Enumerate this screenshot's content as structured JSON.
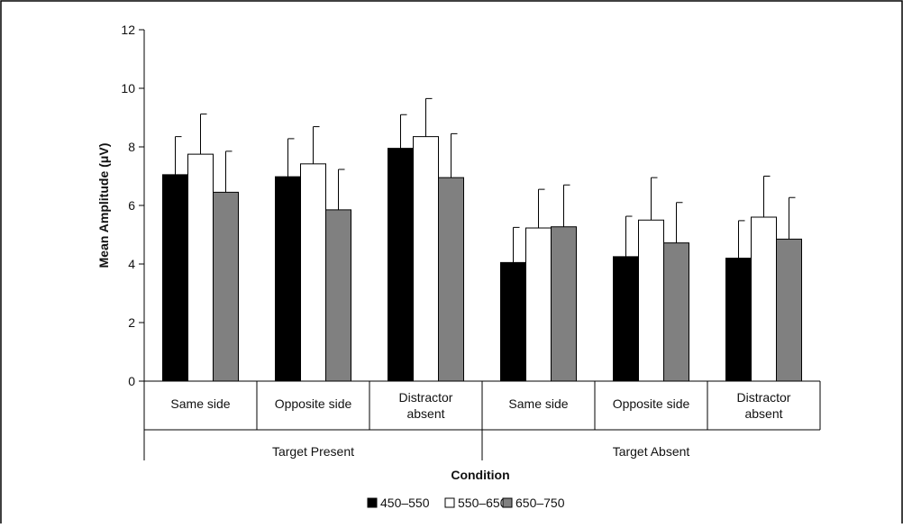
{
  "chart_data": {
    "type": "bar",
    "title": "",
    "xlabel": "Condition",
    "ylabel": "Mean Amplitude (μV)",
    "ylim": [
      0,
      12
    ],
    "yticks": [
      0,
      2,
      4,
      6,
      8,
      10,
      12
    ],
    "groups": [
      {
        "label": "Target Present",
        "categories": [
          "Same side",
          "Opposite side",
          "Distractor absent"
        ]
      },
      {
        "label": "Target Absent",
        "categories": [
          "Same side",
          "Opposite side",
          "Distractor absent"
        ]
      }
    ],
    "categories": [
      {
        "lines": [
          "Same side"
        ]
      },
      {
        "lines": [
          "Opposite side"
        ]
      },
      {
        "lines": [
          "Distractor",
          "absent"
        ]
      },
      {
        "lines": [
          "Same side"
        ]
      },
      {
        "lines": [
          "Opposite side"
        ]
      },
      {
        "lines": [
          "Distractor",
          "absent"
        ]
      }
    ],
    "series": [
      {
        "name": "450–550",
        "color": "#000000",
        "values": [
          7.05,
          6.98,
          7.95,
          4.05,
          4.25,
          4.2
        ],
        "errors": [
          1.3,
          1.3,
          1.15,
          1.2,
          1.38,
          1.28
        ]
      },
      {
        "name": "550–650",
        "color": "#ffffff",
        "values": [
          7.75,
          7.42,
          8.35,
          5.23,
          5.5,
          5.6
        ],
        "errors": [
          1.37,
          1.27,
          1.3,
          1.32,
          1.45,
          1.4
        ]
      },
      {
        "name": "650–750",
        "color": "#808080",
        "values": [
          6.45,
          5.85,
          6.95,
          5.27,
          4.72,
          4.85
        ],
        "errors": [
          1.4,
          1.38,
          1.5,
          1.43,
          1.38,
          1.42
        ]
      }
    ],
    "legend_position": "bottom",
    "grid": false
  }
}
